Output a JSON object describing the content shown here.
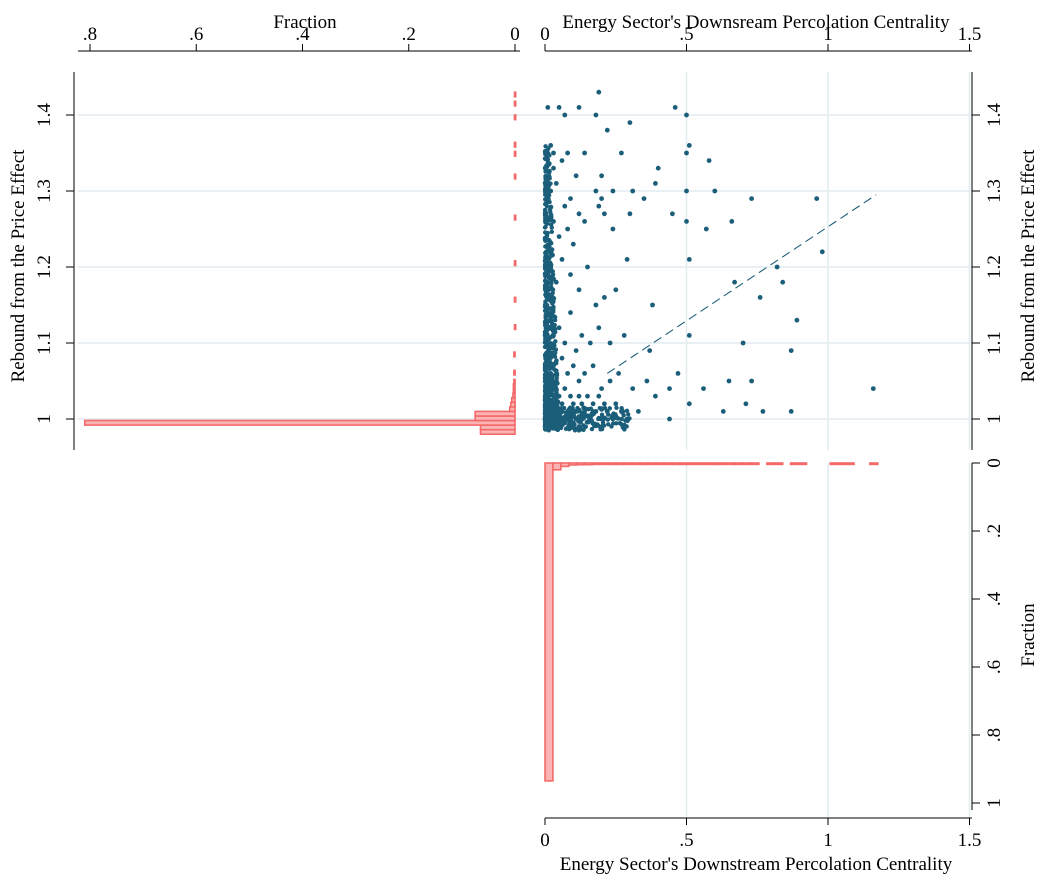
{
  "chart_data": [
    {
      "type": "scatter",
      "title": "",
      "xlabel": "Energy Sector's Downsream Percolation Centrality",
      "ylabel": "Rebound from the Price Effect",
      "ylabel_right": "Rebound from the Price Effect",
      "xlim": [
        0,
        1.5
      ],
      "ylim": [
        0.98,
        1.44
      ],
      "x_ticks": [
        {
          "value": 0,
          "label": "0"
        },
        {
          "value": 0.5,
          "label": ".5"
        },
        {
          "value": 1,
          "label": "1"
        },
        {
          "value": 1.5,
          "label": "1.5"
        }
      ],
      "y_ticks": [
        {
          "value": 1,
          "label": "1"
        },
        {
          "value": 1.1,
          "label": "1.1"
        },
        {
          "value": 1.2,
          "label": "1.2"
        },
        {
          "value": 1.3,
          "label": "1.3"
        },
        {
          "value": 1.4,
          "label": "1.4"
        }
      ],
      "grid": true,
      "marker_color": "#1b5e7a",
      "series": [
        {
          "kind": "points",
          "points": [
            [
              0.01,
              1.41
            ],
            [
              0.02,
              1.36
            ],
            [
              0.03,
              1.35
            ],
            [
              0.05,
              1.41
            ],
            [
              0.07,
              1.4
            ],
            [
              0.12,
              1.41
            ],
            [
              0.19,
              1.43
            ],
            [
              0.18,
              1.4
            ],
            [
              0.22,
              1.38
            ],
            [
              0.3,
              1.39
            ],
            [
              0.46,
              1.41
            ],
            [
              0.5,
              1.4
            ],
            [
              0.03,
              1.33
            ],
            [
              0.06,
              1.34
            ],
            [
              0.08,
              1.35
            ],
            [
              0.11,
              1.32
            ],
            [
              0.14,
              1.35
            ],
            [
              0.2,
              1.32
            ],
            [
              0.27,
              1.35
            ],
            [
              0.4,
              1.33
            ],
            [
              0.5,
              1.35
            ],
            [
              0.51,
              1.36
            ],
            [
              0.58,
              1.34
            ],
            [
              0.02,
              1.3
            ],
            [
              0.04,
              1.31
            ],
            [
              0.07,
              1.28
            ],
            [
              0.09,
              1.29
            ],
            [
              0.12,
              1.27
            ],
            [
              0.18,
              1.3
            ],
            [
              0.2,
              1.29
            ],
            [
              0.24,
              1.3
            ],
            [
              0.31,
              1.3
            ],
            [
              0.35,
              1.29
            ],
            [
              0.39,
              1.31
            ],
            [
              0.5,
              1.3
            ],
            [
              0.6,
              1.3
            ],
            [
              0.73,
              1.29
            ],
            [
              0.96,
              1.29
            ],
            [
              0.03,
              1.26
            ],
            [
              0.05,
              1.24
            ],
            [
              0.08,
              1.25
            ],
            [
              0.1,
              1.23
            ],
            [
              0.14,
              1.26
            ],
            [
              0.19,
              1.28
            ],
            [
              0.21,
              1.27
            ],
            [
              0.24,
              1.25
            ],
            [
              0.3,
              1.27
            ],
            [
              0.45,
              1.27
            ],
            [
              0.5,
              1.26
            ],
            [
              0.57,
              1.25
            ],
            [
              0.66,
              1.26
            ],
            [
              0.84,
              1.18
            ],
            [
              0.98,
              1.22
            ],
            [
              0.02,
              1.2
            ],
            [
              0.04,
              1.18
            ],
            [
              0.06,
              1.21
            ],
            [
              0.09,
              1.19
            ],
            [
              0.12,
              1.17
            ],
            [
              0.15,
              1.2
            ],
            [
              0.18,
              1.15
            ],
            [
              0.21,
              1.16
            ],
            [
              0.25,
              1.17
            ],
            [
              0.29,
              1.21
            ],
            [
              0.38,
              1.15
            ],
            [
              0.51,
              1.21
            ],
            [
              0.67,
              1.18
            ],
            [
              0.76,
              1.16
            ],
            [
              0.82,
              1.2
            ],
            [
              0.02,
              1.13
            ],
            [
              0.03,
              1.11
            ],
            [
              0.05,
              1.12
            ],
            [
              0.07,
              1.1
            ],
            [
              0.09,
              1.14
            ],
            [
              0.11,
              1.09
            ],
            [
              0.13,
              1.11
            ],
            [
              0.16,
              1.1
            ],
            [
              0.19,
              1.12
            ],
            [
              0.23,
              1.1
            ],
            [
              0.28,
              1.11
            ],
            [
              0.37,
              1.09
            ],
            [
              0.51,
              1.11
            ],
            [
              0.7,
              1.1
            ],
            [
              0.89,
              1.13
            ],
            [
              0.87,
              1.09
            ],
            [
              0.01,
              1.08
            ],
            [
              0.02,
              1.06
            ],
            [
              0.03,
              1.07
            ],
            [
              0.04,
              1.05
            ],
            [
              0.06,
              1.08
            ],
            [
              0.08,
              1.06
            ],
            [
              0.1,
              1.07
            ],
            [
              0.12,
              1.05
            ],
            [
              0.14,
              1.06
            ],
            [
              0.17,
              1.07
            ],
            [
              0.2,
              1.04
            ],
            [
              0.23,
              1.05
            ],
            [
              0.26,
              1.06
            ],
            [
              0.31,
              1.04
            ],
            [
              0.36,
              1.05
            ],
            [
              0.44,
              1.04
            ],
            [
              0.47,
              1.06
            ],
            [
              0.56,
              1.04
            ],
            [
              0.65,
              1.05
            ],
            [
              0.73,
              1.05
            ],
            [
              1.16,
              1.04
            ],
            [
              0.01,
              1.03
            ],
            [
              0.02,
              1.02
            ],
            [
              0.03,
              1.04
            ],
            [
              0.04,
              1.01
            ],
            [
              0.05,
              1.03
            ],
            [
              0.06,
              1.02
            ],
            [
              0.07,
              1.04
            ],
            [
              0.08,
              1.01
            ],
            [
              0.09,
              1.03
            ],
            [
              0.1,
              1.02
            ],
            [
              0.11,
              1.01
            ],
            [
              0.12,
              1.03
            ],
            [
              0.13,
              1.02
            ],
            [
              0.14,
              1.01
            ],
            [
              0.15,
              1.03
            ],
            [
              0.16,
              1.0
            ],
            [
              0.17,
              1.02
            ],
            [
              0.18,
              1.01
            ],
            [
              0.19,
              1.03
            ],
            [
              0.2,
              1.0
            ],
            [
              0.21,
              1.02
            ],
            [
              0.22,
              1.01
            ],
            [
              0.24,
              1.0
            ],
            [
              0.25,
              1.02
            ],
            [
              0.27,
              1.01
            ],
            [
              0.29,
              1.0
            ],
            [
              0.33,
              1.01
            ],
            [
              0.39,
              1.03
            ],
            [
              0.44,
              1.0
            ],
            [
              0.51,
              1.02
            ],
            [
              0.63,
              1.01
            ],
            [
              0.71,
              1.02
            ],
            [
              0.77,
              1.01
            ],
            [
              0.87,
              1.01
            ],
            [
              0.005,
              1.0
            ],
            [
              0.01,
              0.995
            ],
            [
              0.015,
              1.005
            ],
            [
              0.02,
              0.99
            ],
            [
              0.025,
              1.0
            ],
            [
              0.03,
              0.995
            ],
            [
              0.04,
              1.0
            ],
            [
              0.05,
              0.99
            ],
            [
              0.06,
              1.0
            ],
            [
              0.07,
              0.995
            ],
            [
              0.08,
              1.0
            ],
            [
              0.09,
              1.005
            ],
            [
              0.1,
              0.995
            ],
            [
              0.11,
              1.0
            ],
            [
              0.12,
              0.99
            ],
            [
              0.13,
              1.005
            ]
          ]
        },
        {
          "kind": "dense_cluster",
          "x_range": [
            0,
            0.05
          ],
          "y_range": [
            0.99,
            1.36
          ]
        },
        {
          "kind": "fit_line",
          "style": "dashed",
          "from": [
            0.22,
            1.06
          ],
          "to": [
            1.17,
            1.295
          ]
        }
      ]
    },
    {
      "type": "bar",
      "orientation": "horizontal",
      "title": "",
      "xlabel": "Fraction",
      "ylabel": "",
      "xlim": [
        0,
        0.8
      ],
      "x_reversed": true,
      "x_ticks": [
        {
          "value": 0.8,
          "label": ".8"
        },
        {
          "value": 0.6,
          "label": ".6"
        },
        {
          "value": 0.4,
          "label": ".4"
        },
        {
          "value": 0.2,
          "label": ".2"
        },
        {
          "value": 0,
          "label": "0"
        }
      ],
      "bar_color": "#f46a6a",
      "bin_width": 0.006,
      "bins": [
        {
          "y": 0.983,
          "value": 0.065
        },
        {
          "y": 0.989,
          "value": 0.065
        },
        {
          "y": 0.995,
          "value": 0.81
        },
        {
          "y": 1.001,
          "value": 0.075
        },
        {
          "y": 1.007,
          "value": 0.075
        },
        {
          "y": 1.013,
          "value": 0.01
        },
        {
          "y": 1.019,
          "value": 0.008
        },
        {
          "y": 1.025,
          "value": 0.006
        },
        {
          "y": 1.031,
          "value": 0.004
        },
        {
          "y": 1.037,
          "value": 0.003
        },
        {
          "y": 1.043,
          "value": 0.003
        },
        {
          "y": 1.049,
          "value": 0.002
        },
        {
          "y": 1.061,
          "value": 0.002
        },
        {
          "y": 1.085,
          "value": 0.002
        },
        {
          "y": 1.121,
          "value": 0.001
        },
        {
          "y": 1.157,
          "value": 0.001
        },
        {
          "y": 1.205,
          "value": 0.001
        },
        {
          "y": 1.265,
          "value": 0.001
        },
        {
          "y": 1.319,
          "value": 0.001
        },
        {
          "y": 1.349,
          "value": 0.001
        },
        {
          "y": 1.361,
          "value": 0.001
        },
        {
          "y": 1.397,
          "value": 0.001
        },
        {
          "y": 1.415,
          "value": 0.001
        },
        {
          "y": 1.427,
          "value": 0.001
        }
      ]
    },
    {
      "type": "bar",
      "orientation": "vertical",
      "title": "",
      "xlabel": "Energy Sector's Downstream Percolation Centrality",
      "ylabel": "Fraction",
      "xlim": [
        0,
        1.5
      ],
      "ylim": [
        0,
        1
      ],
      "y_reversed": true,
      "x_ticks": [
        {
          "value": 0,
          "label": "0"
        },
        {
          "value": 0.5,
          "label": ".5"
        },
        {
          "value": 1,
          "label": "1"
        },
        {
          "value": 1.5,
          "label": "1.5"
        }
      ],
      "y_ticks": [
        {
          "value": 0,
          "label": "0"
        },
        {
          "value": 0.2,
          "label": ".2"
        },
        {
          "value": 0.4,
          "label": ".4"
        },
        {
          "value": 0.6,
          "label": ".6"
        },
        {
          "value": 0.8,
          "label": ".8"
        },
        {
          "value": 1,
          "label": "1"
        }
      ],
      "bar_color": "#f46a6a",
      "bin_width": 0.028,
      "bins": [
        {
          "x": 0.014,
          "value": 0.935
        },
        {
          "x": 0.042,
          "value": 0.02
        },
        {
          "x": 0.07,
          "value": 0.01
        },
        {
          "x": 0.098,
          "value": 0.006
        },
        {
          "x": 0.126,
          "value": 0.005
        },
        {
          "x": 0.154,
          "value": 0.005
        },
        {
          "x": 0.182,
          "value": 0.004
        },
        {
          "x": 0.21,
          "value": 0.004
        },
        {
          "x": 0.238,
          "value": 0.003
        },
        {
          "x": 0.266,
          "value": 0.003
        },
        {
          "x": 0.294,
          "value": 0.003
        },
        {
          "x": 0.322,
          "value": 0.003
        },
        {
          "x": 0.35,
          "value": 0.003
        },
        {
          "x": 0.378,
          "value": 0.003
        },
        {
          "x": 0.406,
          "value": 0.003
        },
        {
          "x": 0.434,
          "value": 0.003
        },
        {
          "x": 0.462,
          "value": 0.003
        },
        {
          "x": 0.49,
          "value": 0.003
        },
        {
          "x": 0.518,
          "value": 0.003
        },
        {
          "x": 0.546,
          "value": 0.003
        },
        {
          "x": 0.574,
          "value": 0.003
        },
        {
          "x": 0.602,
          "value": 0.003
        },
        {
          "x": 0.63,
          "value": 0.003
        },
        {
          "x": 0.658,
          "value": 0.003
        },
        {
          "x": 0.686,
          "value": 0.003
        },
        {
          "x": 0.714,
          "value": 0.003
        },
        {
          "x": 0.742,
          "value": 0.003
        },
        {
          "x": 0.798,
          "value": 0.003
        },
        {
          "x": 0.826,
          "value": 0.003
        },
        {
          "x": 0.882,
          "value": 0.003
        },
        {
          "x": 0.91,
          "value": 0.003
        },
        {
          "x": 1.022,
          "value": 0.003
        },
        {
          "x": 1.05,
          "value": 0.003
        },
        {
          "x": 1.078,
          "value": 0.003
        },
        {
          "x": 1.162,
          "value": 0.003
        }
      ]
    }
  ]
}
